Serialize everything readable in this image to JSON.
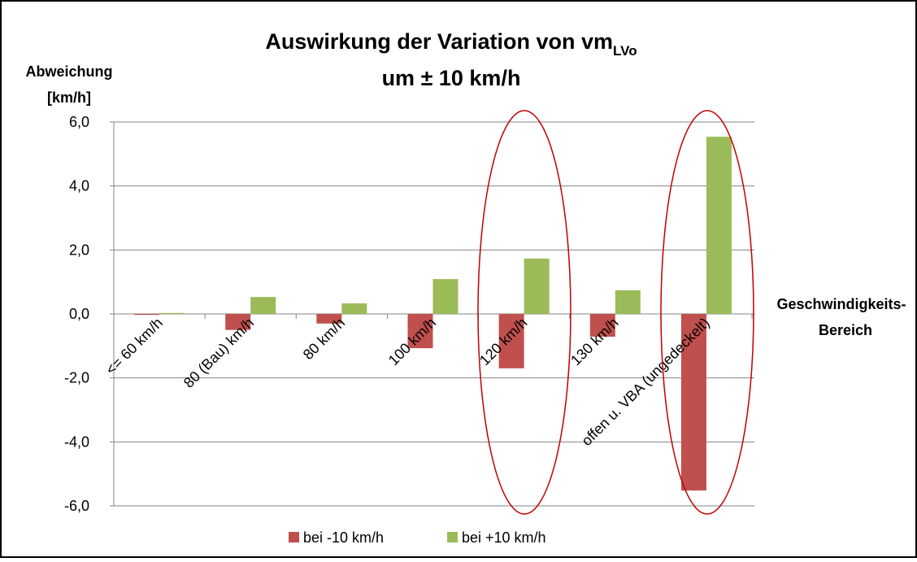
{
  "chart_data": {
    "type": "bar",
    "title": "Auswirkung der Variation von vm",
    "title_subscript": "LVo",
    "subtitle": "um ± 10 km/h",
    "y_label": [
      "Abweichung",
      "[km/h]"
    ],
    "x_label": [
      "Geschwindigkeits-",
      "Bereich"
    ],
    "categories": [
      "<= 60 km/h",
      "80 (Bau) km/h",
      "80 km/h",
      "100 km/h",
      "120 km/h",
      "130 km/h",
      "offen u. VBA (ungedeckelt)"
    ],
    "series": [
      {
        "name": "bei -10 km/h",
        "color": "#c0504d",
        "values": [
          -0.03,
          -0.5,
          -0.3,
          -1.07,
          -1.7,
          -0.71,
          -5.52
        ]
      },
      {
        "name": "bei +10 km/h",
        "color": "#9bbb59",
        "values": [
          0.03,
          0.53,
          0.33,
          1.09,
          1.73,
          0.74,
          5.54
        ]
      }
    ],
    "ylim": [
      -6,
      6
    ],
    "yticks": [
      {
        "value": -6,
        "label": "-6,0"
      },
      {
        "value": -4,
        "label": "-4,0"
      },
      {
        "value": -2,
        "label": "-2,0"
      },
      {
        "value": 0,
        "label": "0,0"
      },
      {
        "value": 2,
        "label": "2,0"
      },
      {
        "value": 4,
        "label": "4,0"
      },
      {
        "value": 6,
        "label": "6,0"
      }
    ],
    "grid": true,
    "legend": "bottom"
  }
}
